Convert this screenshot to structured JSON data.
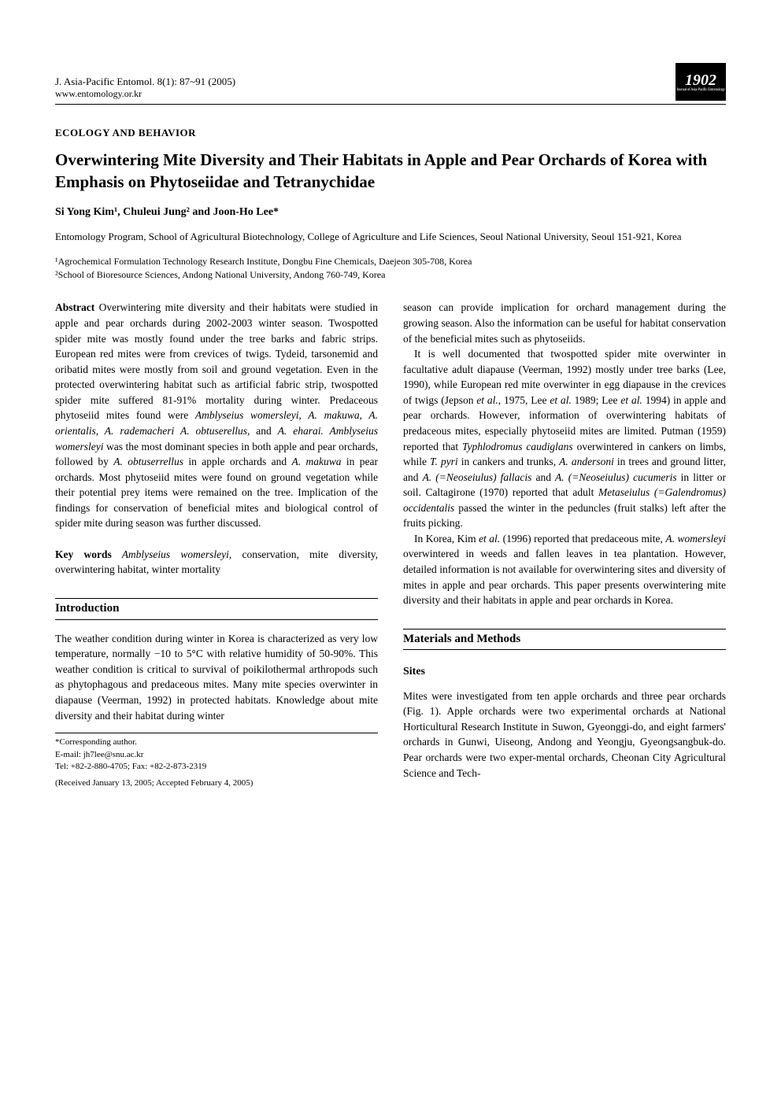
{
  "header": {
    "citation": "J. Asia-Pacific Entomol. 8(1): 87~91 (2005)",
    "url": "www.entomology.or.kr",
    "logo_year": "1902",
    "logo_sub": "Journal of Asia-Pacific Entomology"
  },
  "category": "ECOLOGY AND BEHAVIOR",
  "title": "Overwintering Mite Diversity and Their Habitats in Apple and Pear Orchards of Korea with Emphasis on Phytoseiidae and Tetranychidae",
  "authors": "Si Yong Kim¹, Chuleui Jung² and Joon-Ho Lee*",
  "affiliation_main": "Entomology Program, School of Agricultural Biotechnology, College of Agriculture and Life Sciences, Seoul National University, Seoul 151-921, Korea",
  "footnote1": "¹Agrochemical Formulation Technology Research Institute, Dongbu Fine Chemicals, Daejeon 305-708, Korea",
  "footnote2": "²School of Bioresource Sciences, Andong National University, Andong 760-749, Korea",
  "abstract_label": "Abstract",
  "abstract_text_1": " Overwintering mite diversity and their habitats were studied in apple and pear orchards during 2002-2003 winter season. Twospotted spider mite was mostly found under the tree barks and fabric strips. European red mites were from crevices of twigs. Tydeid, tarsonemid and oribatid mites were mostly from soil and ground vegetation. Even in the protected overwintering habitat such as artificial fabric strip, twospotted spider mite suffered 81-91% mortality during winter. Predaceous phytoseiid mites found were ",
  "abstract_species": "Amblyseius womersleyi, A. makuwa, A. orientalis, A. rademacheri A. obtuserellus,",
  "abstract_and": " and ",
  "abstract_species2": "A. eharai. Amblyseius womersleyi",
  "abstract_text_2": " was the most dominant species in both apple and pear orchards, followed by ",
  "abstract_species3": "A. obtuserrellus",
  "abstract_text_3": " in apple orchards and ",
  "abstract_species4": "A. makuwa",
  "abstract_text_4": " in pear orchards. Most phytoseiid mites were found on ground vegetation while their potential prey items were remained on the tree. Implication of the findings for conservation of beneficial mites and biological control of spider mite during season was further discussed.",
  "keywords_label": "Key words",
  "keywords_italic": " Amblyseius womersleyi,",
  "keywords_text": " conservation, mite diversity, overwintering habitat, winter mortality",
  "intro_heading": "Introduction",
  "intro_para1": "The weather condition during winter in Korea is characterized as very low temperature, normally −10 to 5°C with relative humidity of 50-90%. This weather condition is critical to survival of poikilothermal arthropods such as phytophagous and predaceous mites. Many mite species overwinter in diapause (Veerman, 1992) in protected habitats. Knowledge about mite diversity and their habitat during winter",
  "correspond_label": "*Corresponding author.",
  "correspond_email": "E-mail: jh7lee@snu.ac.kr",
  "correspond_tel": "Tel: +82-2-880-4705; Fax: +82-2-873-2319",
  "received": "(Received January 13, 2005; Accepted February 4, 2005)",
  "col2_para1": "season can provide implication for orchard management during the growing season. Also the information can be useful for habitat conservation of the beneficial mites such as phytoseiids.",
  "col2_para2a": "It is well documented that twospotted spider mite overwinter in facultative adult diapause (Veerman, 1992) mostly under tree barks (Lee, 1990), while European red mite overwinter in egg diapause in the crevices of twigs (Jepson ",
  "col2_para2_it1": "et al.,",
  "col2_para2b": " 1975, Lee ",
  "col2_para2_it2": "et al.",
  "col2_para2c": " 1989; Lee ",
  "col2_para2_it3": "et al.",
  "col2_para2d": " 1994) in apple and pear orchards. However, information of overwintering habitats of predaceous mites, especially phytoseiid mites are limited. Putman (1959) reported that ",
  "col2_para2_sp1": "Typhlodromus caudiglans",
  "col2_para2e": " overwintered in cankers on limbs, while ",
  "col2_para2_sp2": "T. pyri",
  "col2_para2f": " in cankers and trunks, ",
  "col2_para2_sp3": "A. andersoni",
  "col2_para2g": " in trees and ground litter, and ",
  "col2_para2_sp4": "A. (=Neoseiulus) fallacis",
  "col2_para2h": " and ",
  "col2_para2_sp5": "A. (=Neoseiulus) cucumeris",
  "col2_para2i": " in litter or soil. Caltagirone (1970) reported that adult ",
  "col2_para2_sp6": "Metaseiulus (=Galendromus) occidentalis",
  "col2_para2j": " passed the winter in the peduncles (fruit stalks) left after the fruits picking.",
  "col2_para3a": "In Korea, Kim ",
  "col2_para3_it1": "et al.",
  "col2_para3b": " (1996) reported that predaceous mite, ",
  "col2_para3_sp1": "A. womersleyi",
  "col2_para3c": " overwintered in weeds and fallen leaves in tea plantation. However, detailed information is not available for overwintering sites and diversity of mites in apple and pear orchards. This paper presents overwintering mite diversity and their habitats in apple and pear orchards in Korea.",
  "methods_heading": "Materials and Methods",
  "sites_heading": "Sites",
  "sites_para": "Mites were investigated from ten apple orchards and three pear orchards (Fig. 1). Apple orchards were two experimental orchards at National Horticultural Research Institute in Suwon, Gyeonggi-do, and eight farmers' orchards in Gunwi, Uiseong, Andong and Yeongju, Gyeongsangbuk-do. Pear orchards were two exper-mental orchards, Cheonan City Agricultural Science and Tech-"
}
